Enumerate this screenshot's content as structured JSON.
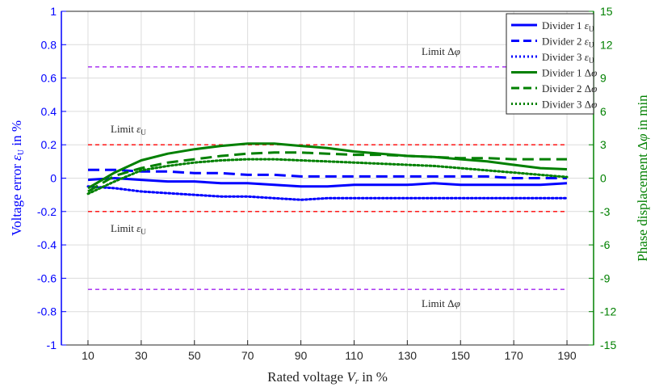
{
  "chart_data": {
    "type": "line",
    "xlabel": "Rated voltage V_r in %",
    "ylabel_left": "Voltage error ε_U in %",
    "ylabel_right": "Phase displacement Δφ in min",
    "xlim": [
      0,
      200
    ],
    "x_ticks": [
      10,
      30,
      50,
      70,
      90,
      110,
      130,
      150,
      170,
      190
    ],
    "ylim_left": [
      -1,
      1
    ],
    "y_ticks_left": [
      1,
      0.8,
      0.6,
      0.4,
      0.2,
      0,
      -0.2,
      -0.4,
      -0.6,
      -0.8,
      -1
    ],
    "ylim_right": [
      -15,
      15
    ],
    "y_ticks_right": [
      15,
      12,
      9,
      6,
      3,
      0,
      -3,
      -6,
      -9,
      -12,
      -15
    ],
    "grid": true,
    "legend_position": "top-right",
    "colors": {
      "voltage": "#0000ff",
      "phase": "#008000",
      "limit_eps": "#ff0000",
      "limit_phi": "#a020f0"
    },
    "limits": [
      {
        "label": "Limit Δφ",
        "axis": "right",
        "value": 10,
        "color": "#a020f0"
      },
      {
        "label": "Limit Δφ",
        "axis": "right",
        "value": -10,
        "color": "#a020f0"
      },
      {
        "label": "Limit ε_U",
        "axis": "left",
        "value": 0.2,
        "color": "#ff0000"
      },
      {
        "label": "Limit ε_U",
        "axis": "left",
        "value": -0.2,
        "color": "#ff0000"
      }
    ],
    "series": [
      {
        "name": "Divider 1 ε_U",
        "axis": "left",
        "style": "solid",
        "color": "#0000ff",
        "x": [
          10,
          20,
          30,
          40,
          50,
          60,
          70,
          80,
          90,
          100,
          110,
          120,
          130,
          140,
          150,
          160,
          170,
          180,
          190
        ],
        "y": [
          -0.01,
          0.0,
          -0.01,
          -0.02,
          -0.02,
          -0.03,
          -0.03,
          -0.04,
          -0.05,
          -0.05,
          -0.04,
          -0.04,
          -0.04,
          -0.03,
          -0.04,
          -0.04,
          -0.04,
          -0.04,
          -0.03
        ]
      },
      {
        "name": "Divider 2 ε_U",
        "axis": "left",
        "style": "dashed",
        "color": "#0000ff",
        "x": [
          10,
          20,
          30,
          40,
          50,
          60,
          70,
          80,
          90,
          100,
          110,
          120,
          130,
          140,
          150,
          160,
          170,
          180,
          190
        ],
        "y": [
          0.05,
          0.05,
          0.04,
          0.04,
          0.03,
          0.03,
          0.02,
          0.02,
          0.01,
          0.01,
          0.01,
          0.01,
          0.01,
          0.01,
          0.01,
          0.01,
          0.0,
          0.0,
          0.0
        ]
      },
      {
        "name": "Divider 3 ε_U",
        "axis": "left",
        "style": "dotted",
        "color": "#0000ff",
        "x": [
          10,
          20,
          30,
          40,
          50,
          60,
          70,
          80,
          90,
          100,
          110,
          120,
          130,
          140,
          150,
          160,
          170,
          180,
          190
        ],
        "y": [
          -0.05,
          -0.06,
          -0.08,
          -0.09,
          -0.1,
          -0.11,
          -0.11,
          -0.12,
          -0.13,
          -0.12,
          -0.12,
          -0.12,
          -0.12,
          -0.12,
          -0.12,
          -0.12,
          -0.12,
          -0.12,
          -0.12
        ]
      },
      {
        "name": "Divider 1 Δφ",
        "axis": "right",
        "style": "solid",
        "color": "#008000",
        "x": [
          10,
          20,
          30,
          40,
          50,
          60,
          70,
          80,
          90,
          100,
          110,
          120,
          130,
          140,
          150,
          160,
          170,
          180,
          190
        ],
        "y": [
          -0.9,
          0.5,
          1.6,
          2.2,
          2.6,
          2.9,
          3.1,
          3.1,
          2.9,
          2.7,
          2.4,
          2.2,
          2.0,
          1.9,
          1.7,
          1.5,
          1.2,
          0.9,
          0.8
        ]
      },
      {
        "name": "Divider 2 Δφ",
        "axis": "right",
        "style": "dashed",
        "color": "#008000",
        "x": [
          10,
          20,
          30,
          40,
          50,
          60,
          70,
          80,
          90,
          100,
          110,
          120,
          130,
          140,
          150,
          160,
          170,
          180,
          190
        ],
        "y": [
          -1.2,
          0.2,
          0.9,
          1.4,
          1.7,
          2.0,
          2.2,
          2.3,
          2.3,
          2.2,
          2.1,
          2.1,
          2.0,
          1.9,
          1.8,
          1.8,
          1.7,
          1.7,
          1.7
        ]
      },
      {
        "name": "Divider 3 Δφ",
        "axis": "right",
        "style": "dotted",
        "color": "#008000",
        "x": [
          10,
          20,
          30,
          40,
          50,
          60,
          70,
          80,
          90,
          100,
          110,
          120,
          130,
          140,
          150,
          160,
          170,
          180,
          190
        ],
        "y": [
          -1.4,
          -0.3,
          0.7,
          1.1,
          1.4,
          1.6,
          1.7,
          1.7,
          1.6,
          1.5,
          1.4,
          1.3,
          1.2,
          1.1,
          0.9,
          0.7,
          0.5,
          0.3,
          0.1
        ]
      }
    ]
  }
}
